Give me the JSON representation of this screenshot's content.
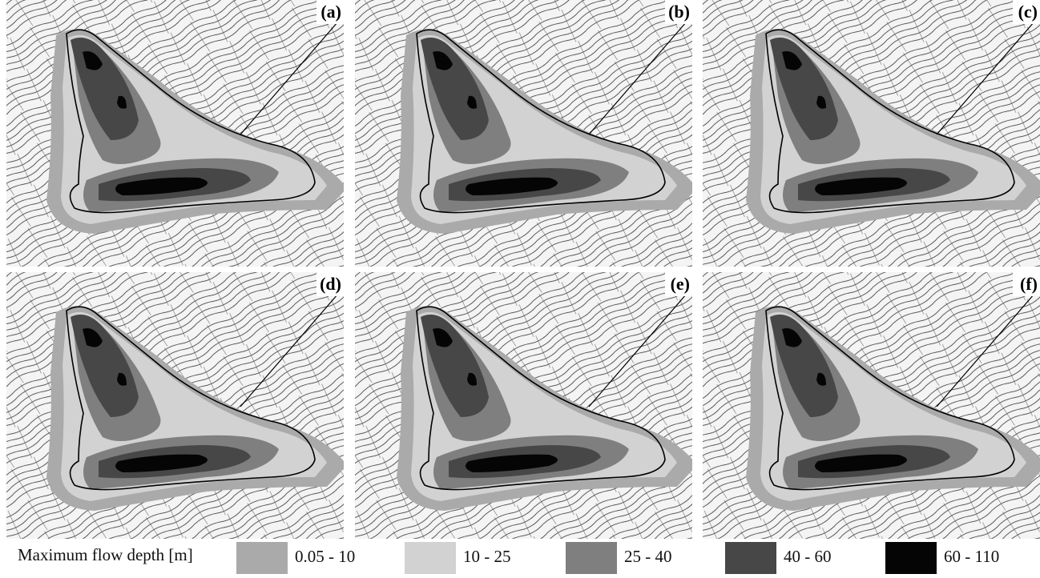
{
  "panels": [
    {
      "label": "(a)"
    },
    {
      "label": "(b)"
    },
    {
      "label": "(c)"
    },
    {
      "label": "(d)"
    },
    {
      "label": "(e)"
    },
    {
      "label": "(f)"
    }
  ],
  "legend": {
    "title": "Maximum flow depth [m]",
    "items": [
      {
        "label": "0.05 - 10",
        "color": "#aaaaaa"
      },
      {
        "label": "10 - 25",
        "color": "#d2d2d2"
      },
      {
        "label": "25 - 40",
        "color": "#7f7f7f"
      },
      {
        "label": "40 - 60",
        "color": "#474747"
      },
      {
        "label": "60 - 110",
        "color": "#050505"
      }
    ]
  }
}
